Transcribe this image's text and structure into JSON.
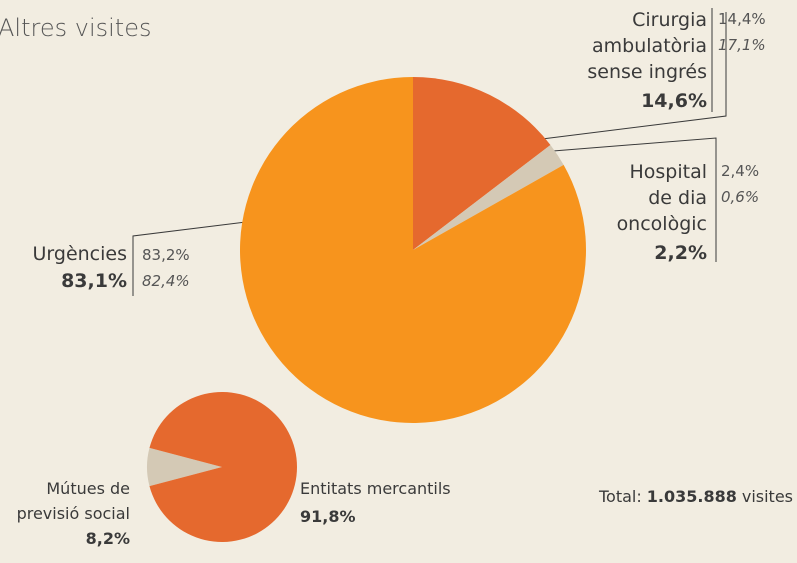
{
  "chart_data": [
    {
      "type": "pie",
      "title": "Altres visites",
      "categories": [
        "Cirurgia\nambulatòria\nsense ingrés",
        "Hospital\nde dia\noncològic",
        "Urgències"
      ],
      "values": [
        14.6,
        2.2,
        83.1
      ],
      "value_labels": [
        "14,6%",
        "2,2%",
        "83,1%"
      ],
      "colors": [
        "#e5692e",
        "#d4c9b5",
        "#f7941d"
      ],
      "comparisons": [
        {
          "values": [
            14.4,
            2.4,
            83.2
          ],
          "value_labels": [
            "14,4%",
            "2,4%",
            "83,2%"
          ]
        },
        {
          "values": [
            17.1,
            0.6,
            82.4
          ],
          "value_labels": [
            "17,1%",
            "0,6%",
            "82,4%"
          ]
        }
      ]
    },
    {
      "type": "pie",
      "categories": [
        "Mútues de\nprevisió social",
        "Entitats mercantils"
      ],
      "values": [
        8.2,
        91.8
      ],
      "value_labels": [
        "8,2%",
        "91,8%"
      ],
      "colors": [
        "#d4c9b5",
        "#e5692e"
      ],
      "annotation": {
        "label": "Total:",
        "value": "1.035.888",
        "unit": "visites"
      }
    }
  ]
}
